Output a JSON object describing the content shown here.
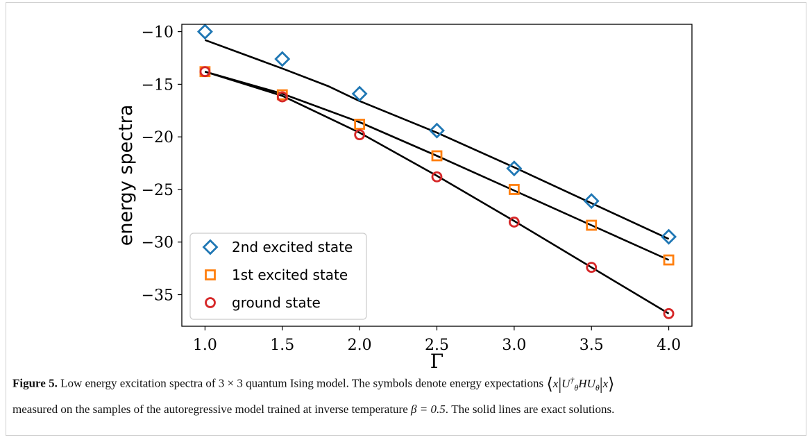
{
  "chart_data": {
    "type": "scatter",
    "xlabel": "Γ",
    "ylabel": "energy spectra",
    "xlim": [
      0.85,
      4.15
    ],
    "ylim": [
      -38.0,
      -9.3
    ],
    "xticks": [
      1.0,
      1.5,
      2.0,
      2.5,
      3.0,
      3.5,
      4.0
    ],
    "xtick_labels": [
      "1.0",
      "1.5",
      "2.0",
      "2.5",
      "3.0",
      "3.5",
      "4.0"
    ],
    "yticks": [
      -10,
      -15,
      -20,
      -25,
      -30,
      -35
    ],
    "ytick_labels": [
      "−10",
      "−15",
      "−20",
      "−25",
      "−30",
      "−35"
    ],
    "grid": false,
    "legend_position": "lower-left",
    "x": [
      1.0,
      1.5,
      2.0,
      2.5,
      3.0,
      3.5,
      4.0
    ],
    "series": [
      {
        "name": "2nd excited state",
        "marker": "diamond",
        "color": "#1f77b4",
        "values": [
          -10.0,
          -12.6,
          -15.9,
          -19.4,
          -23.0,
          -26.1,
          -29.5
        ]
      },
      {
        "name": "1st excited state",
        "marker": "square",
        "color": "#ff7f0e",
        "values": [
          -13.8,
          -16.0,
          -18.8,
          -21.8,
          -25.0,
          -28.4,
          -31.7
        ]
      },
      {
        "name": "ground state",
        "marker": "circle",
        "color": "#d62728",
        "values": [
          -13.8,
          -16.2,
          -19.8,
          -23.8,
          -28.1,
          -32.4,
          -36.8
        ]
      }
    ],
    "exact_lines": [
      {
        "x": [
          1.0,
          1.5,
          1.8,
          2.0,
          2.5,
          3.0,
          3.5,
          4.0
        ],
        "y": [
          -10.8,
          -13.5,
          -15.2,
          -16.6,
          -19.6,
          -22.9,
          -26.3,
          -29.7
        ]
      },
      {
        "x": [
          1.0,
          1.5,
          2.0,
          2.5,
          3.0,
          3.5,
          4.0
        ],
        "y": [
          -13.8,
          -15.9,
          -18.6,
          -21.8,
          -25.1,
          -28.4,
          -31.7
        ]
      },
      {
        "x": [
          1.0,
          1.5,
          2.0,
          2.5,
          3.0,
          3.5,
          4.0
        ],
        "y": [
          -13.8,
          -16.1,
          -19.6,
          -23.7,
          -28.0,
          -32.4,
          -36.8
        ]
      }
    ],
    "line_color": "#000000"
  },
  "caption": {
    "label": "Figure 5.",
    "text_1": " Low energy excitation spectra of 3 × 3 quantum Ising model. The symbols denote energy expectations ",
    "math_x": "x",
    "math_op": "U",
    "math_op_sub": "θ",
    "math_op_sup": "†",
    "math_h": "HU",
    "math_h_sub": "θ",
    "text_2": "measured on the samples of the autoregressive model trained at inverse temperature ",
    "beta": "β = 0.5",
    "text_3": ". The solid lines are exact solutions."
  }
}
